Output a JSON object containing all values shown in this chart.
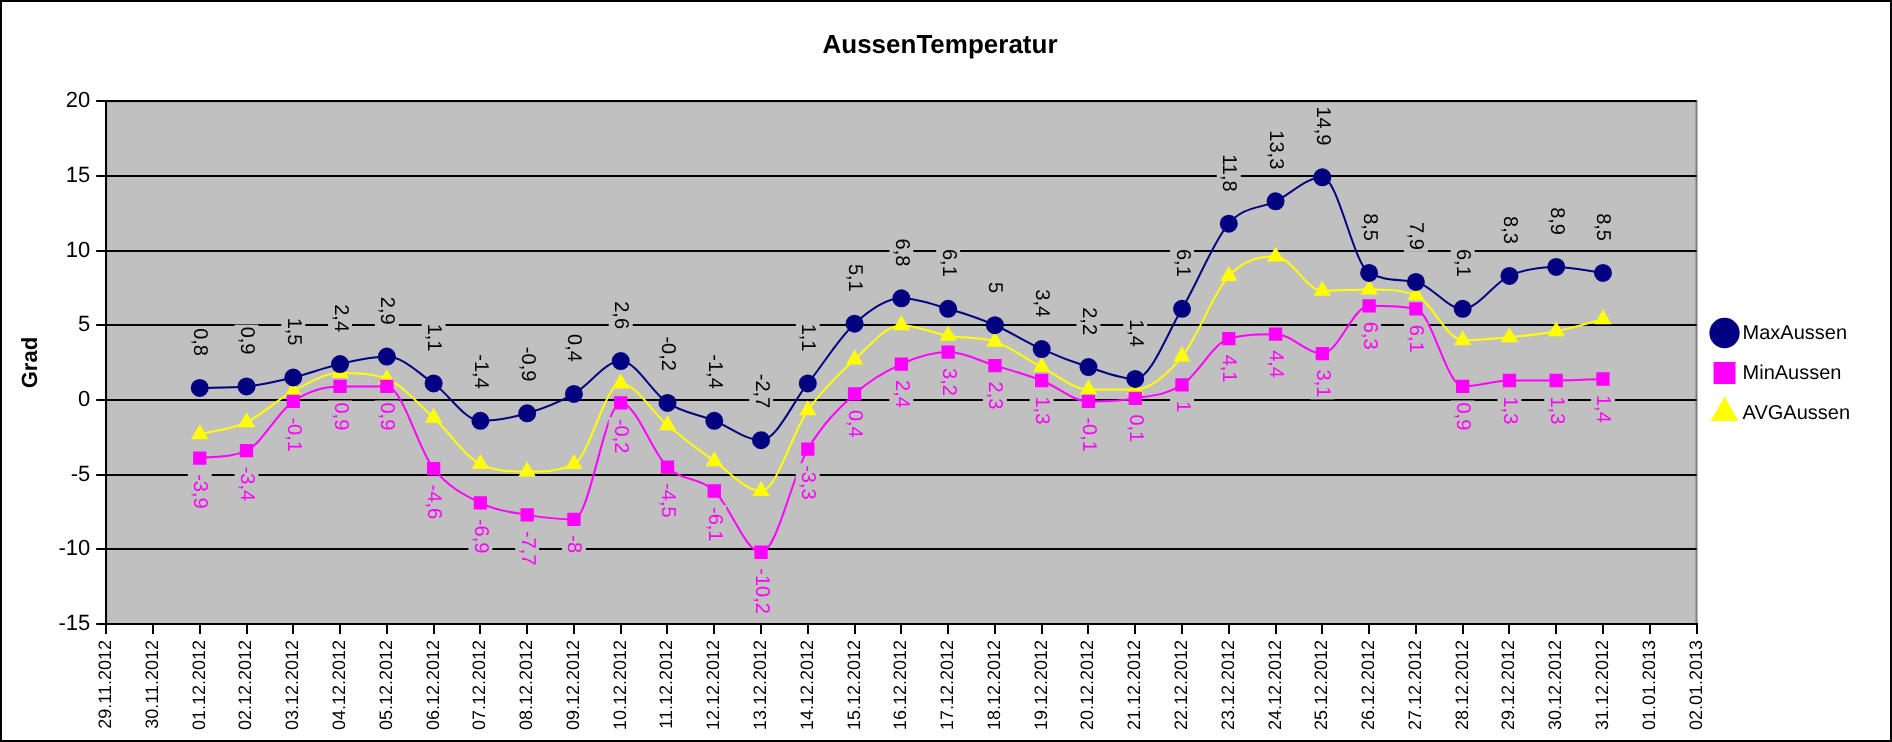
{
  "chart_data": {
    "type": "line",
    "title": "AussenTemperatur",
    "ylabel": "Grad",
    "categories": [
      "29.11.2012",
      "30.11.2012",
      "01.12.2012",
      "02.12.2012",
      "03.12.2012",
      "04.12.2012",
      "05.12.2012",
      "06.12.2012",
      "07.12.2012",
      "08.12.2012",
      "09.12.2012",
      "10.12.2012",
      "11.12.2012",
      "12.12.2012",
      "13.12.2012",
      "14.12.2012",
      "15.12.2012",
      "16.12.2012",
      "17.12.2012",
      "18.12.2012",
      "19.12.2012",
      "20.12.2012",
      "21.12.2012",
      "22.12.2012",
      "23.12.2012",
      "24.12.2012",
      "25.12.2012",
      "26.12.2012",
      "27.12.2012",
      "28.12.2012",
      "29.12.2012",
      "30.12.2012",
      "31.12.2012",
      "01.01.2013",
      "02.01.2013"
    ],
    "series": [
      {
        "name": "MaxAussen",
        "color": "#000080",
        "marker": "circle",
        "values": [
          null,
          null,
          0.8,
          0.9,
          1.5,
          2.4,
          2.9,
          1.1,
          -1.4,
          -0.9,
          0.4,
          2.6,
          -0.2,
          -1.4,
          -2.7,
          1.1,
          5.1,
          6.8,
          6.1,
          5,
          3.4,
          2.2,
          1.4,
          6.1,
          11.8,
          13.3,
          14.9,
          8.5,
          7.9,
          6.1,
          8.3,
          8.9,
          8.5,
          null,
          null
        ],
        "value_labels": [
          null,
          null,
          "0,8",
          "0,9",
          "1,5",
          "2,4",
          "2,9",
          "1,1",
          "-1,4",
          "-0,9",
          "0,4",
          "2,6",
          "-0,2",
          "-1,4",
          "-2,7",
          "1,1",
          "5,1",
          "6,8",
          "6,1",
          "5",
          "3,4",
          "2,2",
          "1,4",
          "6,1",
          "11,8",
          "13,3",
          "14,9",
          "8,5",
          "7,9",
          "6,1",
          "8,3",
          "8,9",
          "8,5",
          null,
          null
        ]
      },
      {
        "name": "MinAussen",
        "color": "#ff00ff",
        "marker": "square",
        "values": [
          null,
          null,
          -3.9,
          -3.4,
          -0.1,
          0.9,
          0.9,
          -4.6,
          -6.9,
          -7.7,
          -8,
          -0.2,
          -4.5,
          -6.1,
          -10.2,
          -3.3,
          0.4,
          2.4,
          3.2,
          2.3,
          1.3,
          -0.1,
          0.1,
          1,
          4.1,
          4.4,
          3.1,
          6.3,
          6.1,
          0.9,
          1.3,
          1.3,
          1.4,
          null,
          null
        ],
        "value_labels": [
          null,
          null,
          "-3,9",
          "-3,4",
          "-0,1",
          "0,9",
          "0,9",
          "-4,6",
          "-6,9",
          "-7,7",
          "-8",
          "-0,2",
          "-4,5",
          "-6,1",
          "-10,2",
          "-3,3",
          "0,4",
          "2,4",
          "3,2",
          "2,3",
          "1,3",
          "-0,1",
          "0,1",
          "1",
          "4,1",
          "4,4",
          "3,1",
          "6,3",
          "6,1",
          "0,9",
          "1,3",
          "1,3",
          "1,4",
          null,
          null
        ]
      },
      {
        "name": "AVGAussen",
        "color": "#ffff00",
        "marker": "triangle",
        "values": [
          null,
          null,
          -2.3,
          -1.5,
          0.6,
          1.8,
          1.4,
          -1.2,
          -4.3,
          -4.8,
          -4.3,
          1.1,
          -1.7,
          -4.1,
          -6.1,
          -0.7,
          2.7,
          5,
          4.3,
          3.9,
          2.2,
          0.7,
          0.7,
          2.9,
          8.3,
          9.6,
          7.3,
          7.4,
          7,
          4,
          4.2,
          4.6,
          5.4,
          null,
          null
        ]
      }
    ],
    "ylim": [
      -15,
      20
    ],
    "yticks": [
      -15,
      -10,
      -5,
      0,
      5,
      10,
      15,
      20
    ],
    "grid": "y",
    "legend": "right"
  }
}
